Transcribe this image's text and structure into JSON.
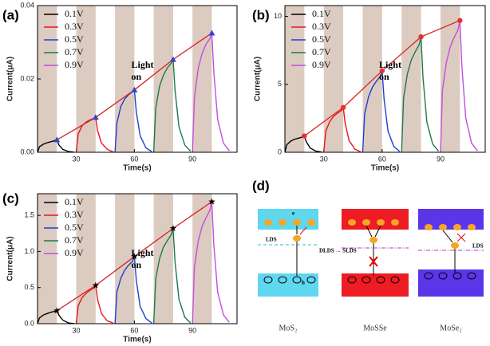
{
  "chart_data": [
    {
      "type": "line",
      "panel_label": "(a)",
      "xlabel": "Time(s)",
      "ylabel": "Current(μA)",
      "annotation": [
        "Light",
        "on"
      ],
      "xlim": [
        10,
        113
      ],
      "xticks": [
        30,
        60,
        90
      ],
      "ylim": [
        0,
        0.04
      ],
      "yticks": [
        {
          "value": 0,
          "label": "0.00"
        },
        {
          "value": 0.02,
          "label": "0.02"
        },
        {
          "value": 0.04,
          "label": "0.04"
        }
      ],
      "spans": [
        [
          10,
          20
        ],
        [
          30,
          40
        ],
        [
          50,
          60
        ],
        [
          70,
          80
        ],
        [
          90,
          100
        ]
      ],
      "span_color": "#dccbc0",
      "series": [
        {
          "name": "0.1V",
          "color": "#000000",
          "x": [
            10,
            11,
            13,
            15,
            17,
            19,
            20,
            21,
            23,
            26,
            29
          ],
          "values": [
            0,
            0.0015,
            0.0022,
            0.0026,
            0.0029,
            0.0032,
            0.0034,
            0.002,
            0.0008,
            0.0002,
            0
          ]
        },
        {
          "name": "0.3V",
          "color": "#e8141c",
          "x": [
            30,
            31,
            33,
            35,
            37,
            39,
            40,
            41,
            43,
            46,
            49
          ],
          "values": [
            0,
            0.005,
            0.0072,
            0.0082,
            0.0088,
            0.0092,
            0.0095,
            0.006,
            0.0025,
            0.0008,
            0.0001
          ]
        },
        {
          "name": "0.5V",
          "color": "#1f3fcf",
          "x": [
            50,
            51,
            53,
            55,
            57,
            59,
            60,
            61,
            63,
            66,
            69
          ],
          "values": [
            0,
            0.008,
            0.0125,
            0.0145,
            0.0157,
            0.0165,
            0.017,
            0.011,
            0.0045,
            0.0012,
            0.0002
          ]
        },
        {
          "name": "0.7V",
          "color": "#1a7a4a",
          "x": [
            70,
            71,
            73,
            75,
            77,
            79,
            80,
            81,
            83,
            86,
            89
          ],
          "values": [
            0,
            0.012,
            0.018,
            0.021,
            0.023,
            0.0243,
            0.0253,
            0.017,
            0.007,
            0.002,
            0.0003
          ]
        },
        {
          "name": "0.9V",
          "color": "#c34de0",
          "x": [
            90,
            91,
            93,
            95,
            97,
            99,
            100,
            101,
            103,
            106,
            109
          ],
          "values": [
            0,
            0.015,
            0.023,
            0.027,
            0.0295,
            0.031,
            0.0325,
            0.022,
            0.009,
            0.0025,
            0.0004
          ]
        }
      ],
      "peak_line": {
        "color": "#d92020",
        "marker": "triangle",
        "marker_color": "#3344cc",
        "x": [
          20,
          40,
          60,
          80,
          100
        ],
        "values": [
          0.0034,
          0.0095,
          0.017,
          0.0253,
          0.0325
        ]
      }
    },
    {
      "type": "line",
      "panel_label": "(b)",
      "xlabel": "Time(s)",
      "ylabel": "Current(μA)",
      "annotation": [
        "Light",
        "on"
      ],
      "xlim": [
        10,
        113
      ],
      "xticks": [
        30,
        60,
        90
      ],
      "ylim": [
        0,
        10.8
      ],
      "yticks": [
        0,
        5,
        10
      ],
      "spans": [
        [
          10,
          20
        ],
        [
          30,
          40
        ],
        [
          50,
          60
        ],
        [
          70,
          80
        ],
        [
          90,
          100
        ]
      ],
      "span_color": "#dccbc0",
      "series": [
        {
          "name": "0.1V",
          "color": "#000000",
          "x": [
            10,
            11,
            13,
            15,
            17,
            19,
            20,
            21,
            23,
            26,
            29
          ],
          "values": [
            0,
            0.56,
            0.82,
            0.96,
            1.04,
            1.12,
            1.2,
            0.78,
            0.31,
            0.08,
            0.01
          ]
        },
        {
          "name": "0.3V",
          "color": "#e8141c",
          "x": [
            30,
            31,
            33,
            35,
            37,
            39,
            40,
            41,
            43,
            46,
            49
          ],
          "values": [
            0,
            1.55,
            2.24,
            2.64,
            2.87,
            3.07,
            3.3,
            2.15,
            0.86,
            0.23,
            0.03
          ]
        },
        {
          "name": "0.5V",
          "color": "#1f3fcf",
          "x": [
            50,
            51,
            53,
            55,
            57,
            59,
            60,
            61,
            63,
            66,
            69
          ],
          "values": [
            0,
            2.82,
            4.08,
            4.8,
            5.22,
            5.58,
            6.0,
            3.9,
            1.56,
            0.42,
            0.06
          ]
        },
        {
          "name": "0.7V",
          "color": "#1a7a4a",
          "x": [
            70,
            71,
            73,
            75,
            77,
            79,
            80,
            81,
            83,
            86,
            89
          ],
          "values": [
            0,
            4.0,
            5.78,
            6.8,
            7.4,
            7.9,
            8.5,
            5.53,
            2.21,
            0.6,
            0.09
          ]
        },
        {
          "name": "0.9V",
          "color": "#c34de0",
          "x": [
            90,
            91,
            93,
            95,
            97,
            99,
            100,
            101,
            103,
            106,
            109
          ],
          "values": [
            0,
            4.56,
            6.6,
            7.76,
            8.44,
            9.02,
            9.7,
            6.31,
            2.52,
            0.68,
            0.1
          ]
        }
      ],
      "peak_line": {
        "color": "#d92020",
        "marker": "circle",
        "marker_color": "#e83030",
        "x": [
          20,
          40,
          60,
          80,
          100
        ],
        "values": [
          1.2,
          3.3,
          6.0,
          8.5,
          9.7
        ]
      }
    },
    {
      "type": "line",
      "panel_label": "(c)",
      "xlabel": "Time(s)",
      "ylabel": "Current(μA)",
      "annotation": [
        "Light",
        "on"
      ],
      "xlim": [
        10,
        113
      ],
      "xticks": [
        30,
        60,
        90
      ],
      "ylim": [
        0,
        1.8
      ],
      "yticks": [
        {
          "value": 0,
          "label": "0.0"
        },
        0.5,
        {
          "value": 1,
          "label": "1.0"
        },
        1.5
      ],
      "spans": [
        [
          10,
          20
        ],
        [
          30,
          40
        ],
        [
          50,
          60
        ],
        [
          70,
          80
        ],
        [
          90,
          100
        ]
      ],
      "span_color": "#dccbc0",
      "series": [
        {
          "name": "0.1V",
          "color": "#000000",
          "x": [
            10,
            11,
            13,
            15,
            17,
            19,
            20,
            21,
            23,
            26,
            29
          ],
          "values": [
            0,
            0.08,
            0.12,
            0.14,
            0.16,
            0.17,
            0.18,
            0.12,
            0.05,
            0.01,
            0
          ]
        },
        {
          "name": "0.3V",
          "color": "#e8141c",
          "x": [
            30,
            31,
            33,
            35,
            37,
            39,
            40,
            41,
            43,
            46,
            49
          ],
          "values": [
            0,
            0.25,
            0.36,
            0.42,
            0.46,
            0.49,
            0.53,
            0.34,
            0.14,
            0.04,
            0.01
          ]
        },
        {
          "name": "0.5V",
          "color": "#1f3fcf",
          "x": [
            50,
            51,
            53,
            55,
            57,
            59,
            60,
            61,
            63,
            66,
            69
          ],
          "values": [
            0,
            0.44,
            0.63,
            0.74,
            0.81,
            0.86,
            0.93,
            0.6,
            0.24,
            0.07,
            0.01
          ]
        },
        {
          "name": "0.7V",
          "color": "#1a7a4a",
          "x": [
            70,
            71,
            73,
            75,
            77,
            79,
            80,
            81,
            83,
            86,
            89
          ],
          "values": [
            0,
            0.62,
            0.9,
            1.06,
            1.15,
            1.23,
            1.32,
            0.86,
            0.34,
            0.09,
            0.01
          ]
        },
        {
          "name": "0.9V",
          "color": "#c34de0",
          "x": [
            90,
            91,
            93,
            95,
            97,
            99,
            100,
            101,
            103,
            106,
            109
          ],
          "values": [
            0,
            0.79,
            1.15,
            1.35,
            1.47,
            1.57,
            1.69,
            1.1,
            0.44,
            0.12,
            0.02
          ]
        }
      ],
      "peak_line": {
        "color": "#d92020",
        "marker": "star",
        "marker_color": "#000000",
        "x": [
          20,
          40,
          60,
          80,
          100
        ],
        "values": [
          0.18,
          0.53,
          0.93,
          1.32,
          1.69
        ]
      }
    }
  ],
  "diagram": {
    "panel_label": "(d)",
    "electron": "e",
    "hole": "h",
    "materials": [
      {
        "name": "MoS₂",
        "level": "LDS"
      },
      {
        "name": "MoSSe",
        "level": "DLDS → SLDS"
      },
      {
        "name": "MoSe₂",
        "level": "LDS"
      }
    ]
  }
}
